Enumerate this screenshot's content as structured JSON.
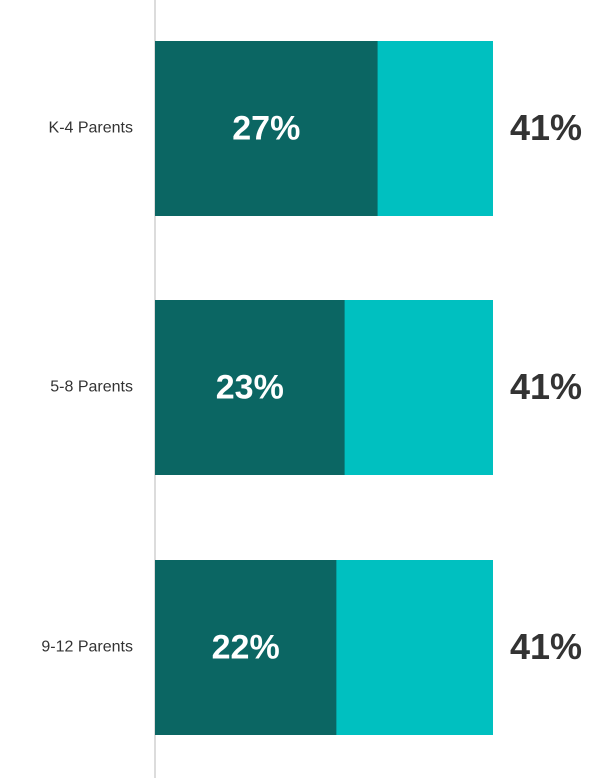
{
  "chart_data": {
    "type": "overlap-bar",
    "categories": [
      "K-4 Parents",
      "5-8 Parents",
      "9-12 Parents"
    ],
    "series": [
      {
        "color": "#00c0c0",
        "values": [
          41,
          41,
          41
        ],
        "value_labels": [
          "41%",
          "41%",
          "41%"
        ]
      },
      {
        "color": "#0b6663",
        "values": [
          27,
          23,
          22
        ],
        "value_labels": [
          "27%",
          "23%",
          "22%"
        ]
      }
    ]
  }
}
